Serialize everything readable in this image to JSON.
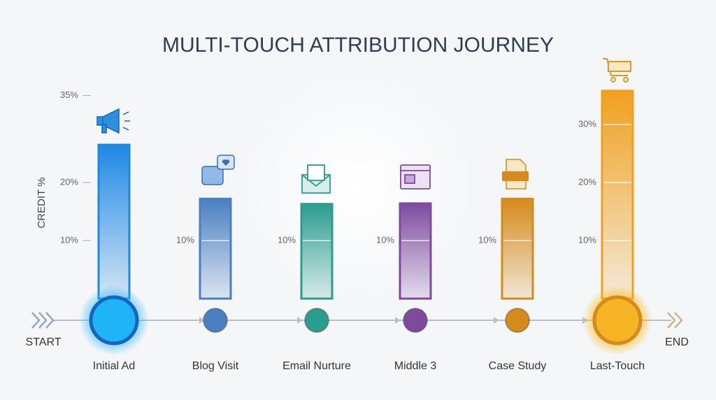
{
  "chart_data": {
    "type": "bar",
    "title": "MULTI-TOUCH ATTRIBUTION JOURNEY",
    "y_label": "CREDIT %",
    "start_label": "START",
    "end_label": "END",
    "categories": [
      "Initial Ad",
      "Blog Visit",
      "Email Nurture",
      "Middle 3",
      "Case Study",
      "Last-Touch"
    ],
    "values": [
      26.5,
      17.2,
      16.3,
      16.4,
      17.2,
      35.8
    ],
    "colors": [
      "#1e88e5",
      "#4a7fc1",
      "#2a9d8f",
      "#7e4a9e",
      "#d68a1a",
      "#f0a020"
    ],
    "ylim": [
      0,
      40
    ],
    "yticks": [
      {
        "value": 35,
        "label": "35%"
      },
      {
        "value": 20,
        "label": "20%"
      },
      {
        "value": 10,
        "label": "10%"
      }
    ],
    "bar_ticks": [
      [],
      [
        {
          "value": 10,
          "label": "10%"
        }
      ],
      [
        {
          "value": 10,
          "label": "10%"
        }
      ],
      [
        {
          "value": 10,
          "label": "10%"
        }
      ],
      [
        {
          "value": 10,
          "label": "10%"
        }
      ],
      [
        {
          "value": 30,
          "label": "30%"
        },
        {
          "value": 20,
          "label": "20%"
        },
        {
          "value": 10,
          "label": "10%"
        }
      ]
    ]
  }
}
